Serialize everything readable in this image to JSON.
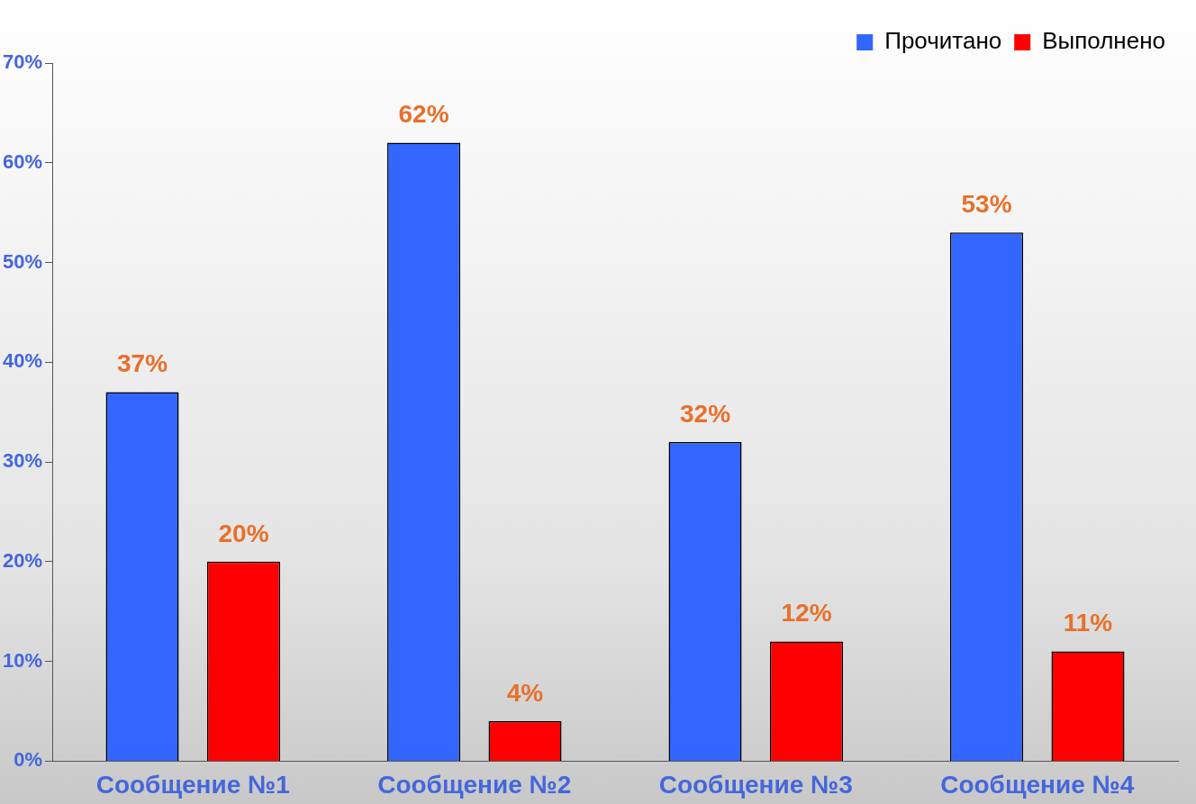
{
  "chart_data": {
    "type": "bar",
    "categories": [
      "Сообщение №1",
      "Сообщение №2",
      "Сообщение №3",
      "Сообщение №4"
    ],
    "series": [
      {
        "name": "Прочитано",
        "color": "#3366ff",
        "values": [
          37,
          62,
          32,
          53
        ],
        "value_labels": [
          "37%",
          "62%",
          "32%",
          "53%"
        ]
      },
      {
        "name": "Выполнено",
        "color": "#ff0000",
        "values": [
          20,
          4,
          12,
          11
        ],
        "value_labels": [
          "20%",
          "4%",
          "12%",
          "11%"
        ]
      }
    ],
    "ylim": [
      0,
      70
    ],
    "yticks": [
      {
        "value": 0,
        "label": "0%"
      },
      {
        "value": 10,
        "label": "10%"
      },
      {
        "value": 20,
        "label": "20%"
      },
      {
        "value": 30,
        "label": "30%"
      },
      {
        "value": 40,
        "label": "40%"
      },
      {
        "value": 50,
        "label": "50%"
      },
      {
        "value": 60,
        "label": "60%"
      },
      {
        "value": 70,
        "label": "70%"
      }
    ],
    "grid": false,
    "legend": "top right"
  }
}
